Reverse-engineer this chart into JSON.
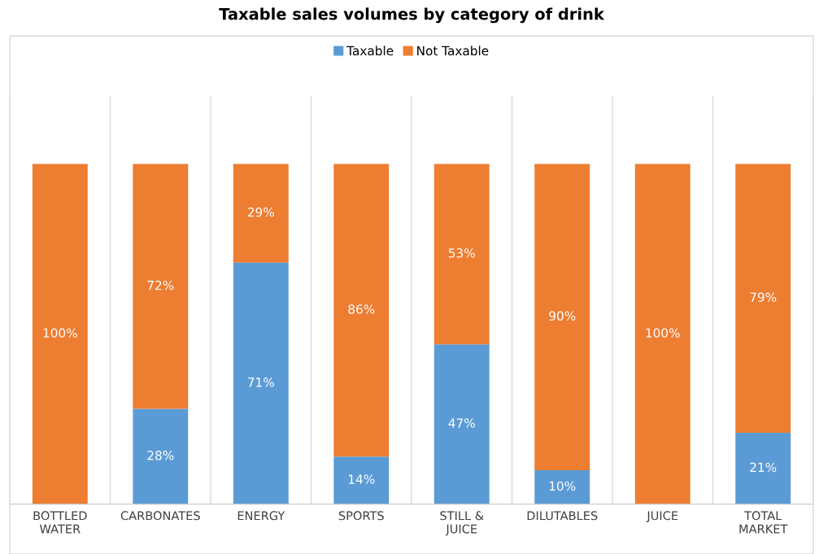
{
  "chart_data": {
    "type": "bar",
    "title": "Taxable sales volumes by category of drink",
    "categories": [
      "BOTTLED\nWATER",
      "CARBONATES",
      "ENERGY",
      "SPORTS",
      "STILL &\nJUICE",
      "DILUTABLES",
      "JUICE",
      "TOTAL\nMARKET"
    ],
    "stacked": true,
    "series": [
      {
        "name": "Taxable",
        "color": "#5b9bd5",
        "values": [
          0,
          28,
          71,
          14,
          47,
          10,
          0,
          21
        ],
        "value_labels": [
          null,
          "28%",
          "71%",
          "14%",
          "47%",
          "10%",
          null,
          "21%"
        ]
      },
      {
        "name": "Not Taxable",
        "color": "#ed7d31",
        "values": [
          100,
          72,
          29,
          86,
          53,
          90,
          100,
          79
        ],
        "value_labels": [
          "100%",
          "72%",
          "29%",
          "86%",
          "53%",
          "90%",
          "100%",
          "79%"
        ]
      }
    ],
    "ylim": [
      0,
      120
    ],
    "tick_labels": "x",
    "grid": "x",
    "legend": "top"
  }
}
